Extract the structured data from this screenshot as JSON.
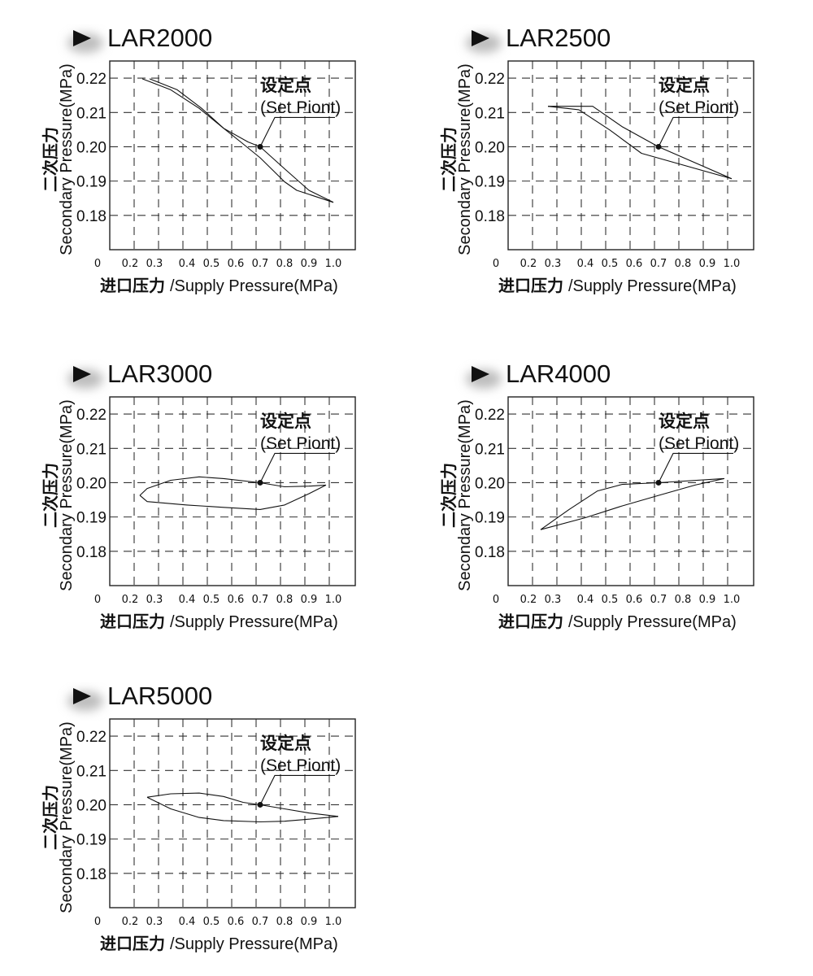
{
  "colors": {
    "ink": "#111111",
    "frame": "#222222",
    "grid": "#333333",
    "shadow": "#bdbdbd"
  },
  "icon": "triangle-right-icon",
  "labels": {
    "ylabel_cn": "二次压力",
    "ylabel_en": "Secondary Pressure(MPa)",
    "xlabel_cn": "进口压力",
    "xlabel_en": "/Supply Pressure(MPa)",
    "setpoint_cn": "设定点",
    "setpoint_en": "(Set Piont)"
  },
  "chart_data": [
    {
      "type": "line",
      "title": "LAR2000",
      "xlabel": "进口压力 /Supply Pressure(MPa)",
      "ylabel": "二次压力 Secondary Pressure(MPa)",
      "x_ticks": [
        "0",
        "0.2",
        "0.3",
        "0.4",
        "0.5",
        "0.6",
        "0.7",
        "0.8",
        "0.9",
        "1.0"
      ],
      "y_ticks": [
        "0.22",
        "0.21",
        "0.20",
        "0.19",
        "0.18"
      ],
      "ylim": [
        0.17,
        0.225
      ],
      "grid": true,
      "set_point": {
        "x": 0.7,
        "y": 0.2,
        "label_cn": "设定点",
        "label_en": "(Set Piont)"
      },
      "series": [
        {
          "points": [
            [
              0.25,
              0.2198
            ],
            [
              0.35,
              0.2166
            ],
            [
              0.45,
              0.2112
            ],
            [
              0.55,
              0.2054
            ],
            [
              0.65,
              0.2014
            ],
            [
              0.7,
              0.2
            ],
            [
              0.8,
              0.1936
            ],
            [
              0.9,
              0.1873
            ],
            [
              1.0,
              0.1838
            ]
          ]
        },
        {
          "points": [
            [
              0.28,
              0.2198
            ],
            [
              0.37,
              0.2166
            ],
            [
              0.46,
              0.2112
            ],
            [
              0.55,
              0.2054
            ],
            [
              0.62,
              0.2014
            ],
            [
              0.7,
              0.1968
            ],
            [
              0.8,
              0.1898
            ],
            [
              0.85,
              0.1873
            ],
            [
              1.0,
              0.1838
            ]
          ]
        }
      ]
    },
    {
      "type": "line",
      "title": "LAR2500",
      "xlabel": "进口压力 /Supply Pressure(MPa)",
      "ylabel": "二次压力 Secondary Pressure(MPa)",
      "x_ticks": [
        "0",
        "0.2",
        "0.3",
        "0.4",
        "0.5",
        "0.6",
        "0.7",
        "0.8",
        "0.9",
        "1.0"
      ],
      "y_ticks": [
        "0.22",
        "0.21",
        "0.20",
        "0.19",
        "0.18"
      ],
      "ylim": [
        0.17,
        0.225
      ],
      "grid": true,
      "set_point": {
        "x": 0.7,
        "y": 0.2,
        "label_cn": "设定点",
        "label_en": "(Set Piont)"
      },
      "series": [
        {
          "points": [
            [
              0.28,
              0.2118
            ],
            [
              0.43,
              0.2118
            ],
            [
              0.55,
              0.2059
            ],
            [
              0.7,
              0.2
            ],
            [
              1.0,
              0.1907
            ]
          ]
        },
        {
          "points": [
            [
              0.28,
              0.2118
            ],
            [
              0.38,
              0.2108
            ],
            [
              0.5,
              0.2049
            ],
            [
              0.63,
              0.1981
            ],
            [
              1.0,
              0.1907
            ]
          ]
        }
      ]
    },
    {
      "type": "line",
      "title": "LAR3000",
      "xlabel": "进口压力 /Supply Pressure(MPa)",
      "ylabel": "二次压力 Secondary Pressure(MPa)",
      "x_ticks": [
        "0",
        "0.2",
        "0.3",
        "0.4",
        "0.5",
        "0.6",
        "0.7",
        "0.8",
        "0.9",
        "1.0"
      ],
      "y_ticks": [
        "0.22",
        "0.21",
        "0.20",
        "0.19",
        "0.18"
      ],
      "ylim": [
        0.17,
        0.225
      ],
      "grid": true,
      "set_point": {
        "x": 0.7,
        "y": 0.2,
        "label_cn": "设定点",
        "label_en": "(Set Piont)"
      },
      "series": [
        {
          "points": [
            [
              0.24,
              0.1963
            ],
            [
              0.27,
              0.1983
            ],
            [
              0.35,
              0.2007
            ],
            [
              0.45,
              0.2017
            ],
            [
              0.55,
              0.2012
            ],
            [
              0.7,
              0.2
            ],
            [
              0.8,
              0.1988
            ],
            [
              0.9,
              0.199
            ],
            [
              0.97,
              0.1993
            ]
          ]
        },
        {
          "points": [
            [
              0.24,
              0.1963
            ],
            [
              0.27,
              0.1945
            ],
            [
              0.4,
              0.1935
            ],
            [
              0.55,
              0.1928
            ],
            [
              0.7,
              0.1922
            ],
            [
              0.8,
              0.1935
            ],
            [
              0.9,
              0.1968
            ],
            [
              0.97,
              0.1993
            ]
          ]
        }
      ]
    },
    {
      "type": "line",
      "title": "LAR4000",
      "xlabel": "进口压力 /Supply Pressure(MPa)",
      "ylabel": "二次压力 Secondary Pressure(MPa)",
      "x_ticks": [
        "0",
        "0.2",
        "0.3",
        "0.4",
        "0.5",
        "0.6",
        "0.7",
        "0.8",
        "0.9",
        "1.0"
      ],
      "y_ticks": [
        "0.22",
        "0.21",
        "0.20",
        "0.19",
        "0.18"
      ],
      "ylim": [
        0.17,
        0.225
      ],
      "grid": true,
      "set_point": {
        "x": 0.7,
        "y": 0.2,
        "label_cn": "设定点",
        "label_en": "(Set Piont)"
      },
      "series": [
        {
          "points": [
            [
              0.25,
              0.1863
            ],
            [
              0.35,
              0.1922
            ],
            [
              0.45,
              0.1976
            ],
            [
              0.55,
              0.1995
            ],
            [
              0.7,
              0.2
            ],
            [
              0.97,
              0.2012
            ]
          ]
        },
        {
          "points": [
            [
              0.25,
              0.1863
            ],
            [
              0.4,
              0.1898
            ],
            [
              0.55,
              0.1932
            ],
            [
              0.7,
              0.1963
            ],
            [
              0.85,
              0.1993
            ],
            [
              0.97,
              0.2012
            ]
          ]
        }
      ]
    },
    {
      "type": "line",
      "title": "LAR5000",
      "xlabel": "进口压力 /Supply Pressure(MPa)",
      "ylabel": "二次压力 Secondary Pressure(MPa)",
      "x_ticks": [
        "0",
        "0.2",
        "0.3",
        "0.4",
        "0.5",
        "0.6",
        "0.7",
        "0.8",
        "0.9",
        "1.0"
      ],
      "y_ticks": [
        "0.22",
        "0.21",
        "0.20",
        "0.19",
        "0.18"
      ],
      "ylim": [
        0.17,
        0.225
      ],
      "grid": true,
      "set_point": {
        "x": 0.7,
        "y": 0.2,
        "label_cn": "设定点",
        "label_en": "(Set Piont)"
      },
      "series": [
        {
          "points": [
            [
              0.27,
              0.2022
            ],
            [
              0.35,
              0.2032
            ],
            [
              0.45,
              0.2034
            ],
            [
              0.55,
              0.2024
            ],
            [
              0.63,
              0.2007
            ],
            [
              0.7,
              0.2
            ],
            [
              0.8,
              0.1988
            ],
            [
              0.9,
              0.1976
            ],
            [
              1.02,
              0.1966
            ]
          ]
        },
        {
          "points": [
            [
              0.27,
              0.2022
            ],
            [
              0.35,
              0.1988
            ],
            [
              0.45,
              0.1963
            ],
            [
              0.55,
              0.1954
            ],
            [
              0.7,
              0.195
            ],
            [
              0.8,
              0.1952
            ],
            [
              0.9,
              0.1958
            ],
            [
              1.02,
              0.1966
            ]
          ]
        }
      ]
    }
  ]
}
